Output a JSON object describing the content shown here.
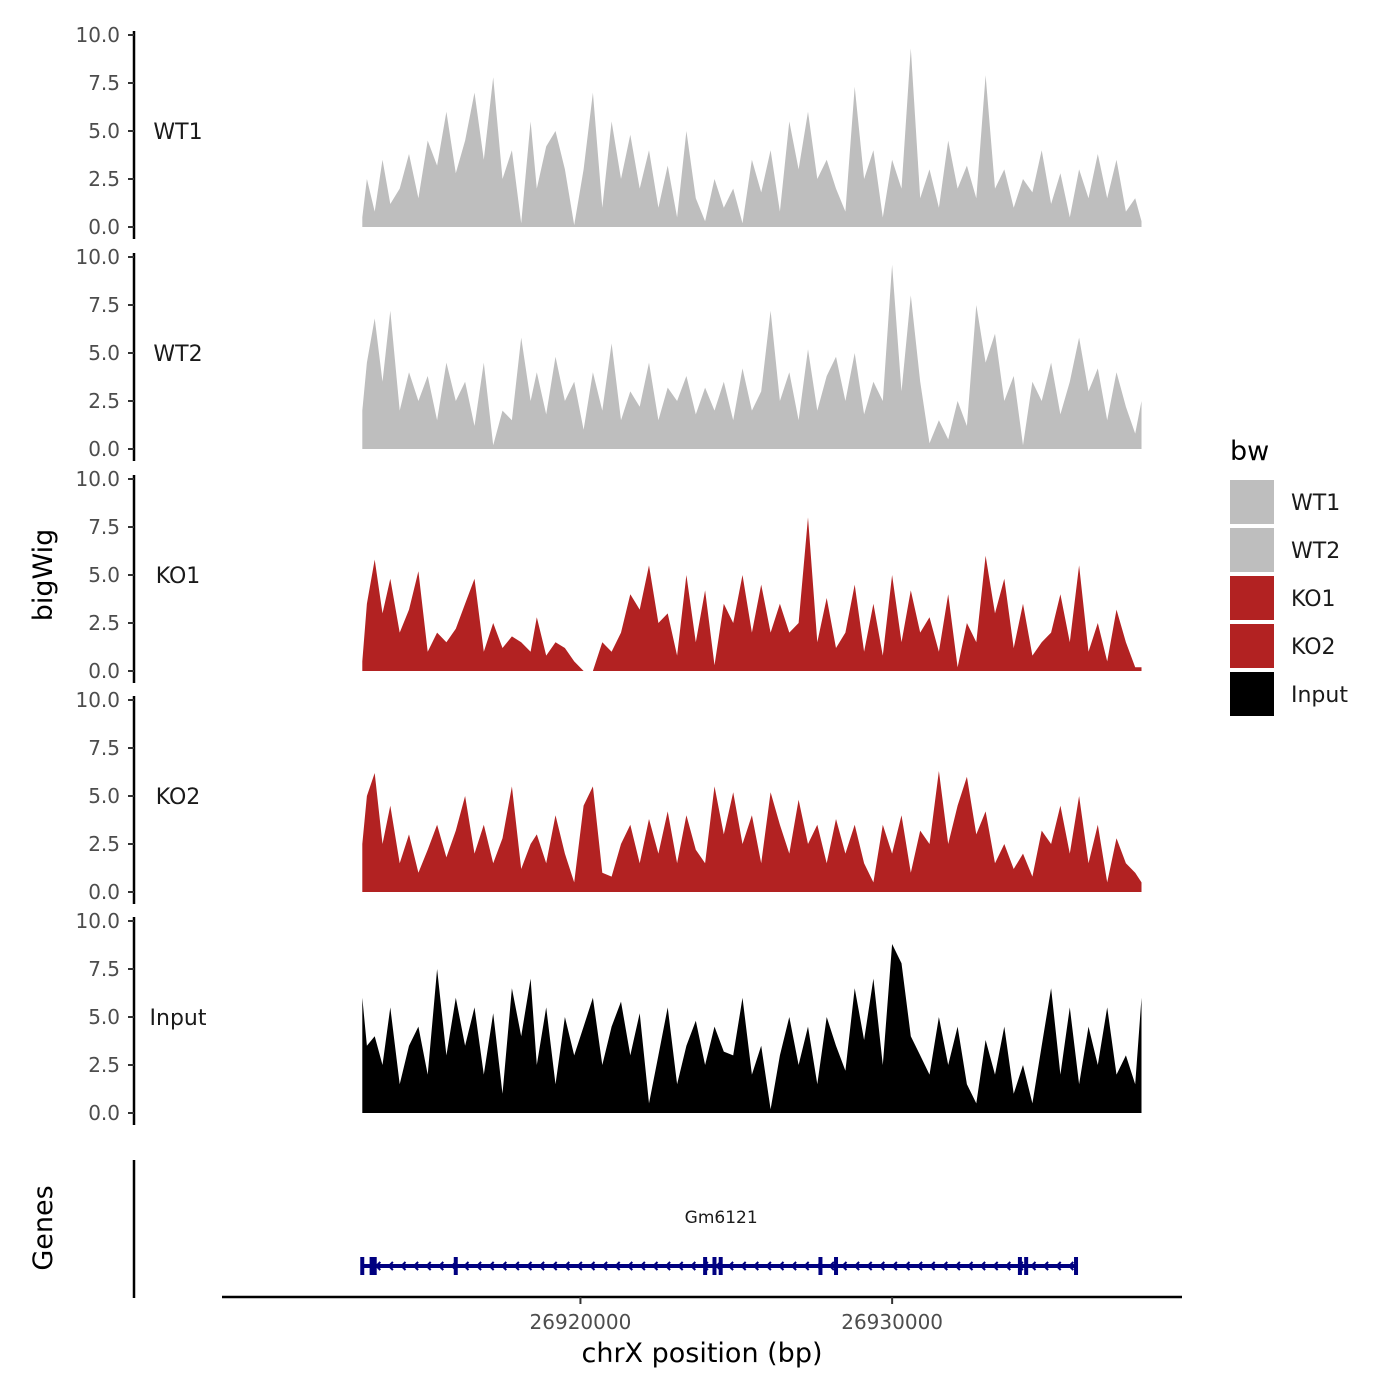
{
  "chart_data": {
    "type": "area",
    "title": "",
    "ylabel": "bigWig",
    "genes_label": "Genes",
    "xlabel": "chrX position (bp)",
    "xlim": [
      26913000,
      26938000
    ],
    "x_axis_range": [
      26908500,
      26939300
    ],
    "x_ticks": [
      26920000,
      26930000
    ],
    "x_tick_labels": [
      "26920000",
      "26930000"
    ],
    "ylim": [
      0,
      10
    ],
    "y_ticks": [
      0,
      2.5,
      5,
      7.5,
      10
    ],
    "y_tick_labels": [
      "0.0",
      "2.5",
      "5.0",
      "7.5",
      "10.0"
    ],
    "legend": {
      "title": "bw",
      "position": "right",
      "entries": [
        {
          "label": "WT1",
          "color": "#bebebe"
        },
        {
          "label": "WT2",
          "color": "#bebebe"
        },
        {
          "label": "KO1",
          "color": "#b22222"
        },
        {
          "label": "KO2",
          "color": "#b22222"
        },
        {
          "label": "Input",
          "color": "#000000"
        }
      ]
    },
    "series": [
      {
        "name": "WT1",
        "color": "#bebebe",
        "x": [
          26913000,
          26913150,
          26913400,
          26913650,
          26913900,
          26914200,
          26914500,
          26914800,
          26915100,
          26915400,
          26915700,
          26916000,
          26916300,
          26916600,
          26916900,
          26917200,
          26917500,
          26917800,
          26918100,
          26918400,
          26918600,
          26918900,
          26919200,
          26919500,
          26919800,
          26920100,
          26920400,
          26920700,
          26921000,
          26921300,
          26921600,
          26921900,
          26922200,
          26922500,
          26922800,
          26923100,
          26923400,
          26923700,
          26924000,
          26924300,
          26924600,
          26924900,
          26925200,
          26925500,
          26925800,
          26926100,
          26926400,
          26926700,
          26927000,
          26927300,
          26927600,
          26927900,
          26928200,
          26928500,
          26928800,
          26929100,
          26929400,
          26929700,
          26930000,
          26930300,
          26930600,
          26930900,
          26931200,
          26931500,
          26931800,
          26932100,
          26932400,
          26932700,
          26933000,
          26933300,
          26933600,
          26933900,
          26934200,
          26934500,
          26934800,
          26935100,
          26935400,
          26935700,
          26936000,
          26936300,
          26936600,
          26936900,
          26937200,
          26937500,
          26937800,
          26938000
        ],
        "y": [
          0.5,
          2.5,
          0.8,
          3.5,
          1.2,
          2.0,
          3.8,
          1.5,
          4.5,
          3.2,
          6.0,
          2.8,
          4.5,
          7.0,
          3.5,
          7.8,
          2.5,
          4.0,
          0.2,
          5.5,
          2.0,
          4.2,
          5.0,
          3.0,
          0.1,
          3.0,
          7.0,
          1.0,
          5.5,
          2.5,
          4.8,
          2.0,
          4.0,
          1.0,
          3.2,
          0.5,
          5.0,
          1.5,
          0.3,
          2.5,
          1.0,
          2.0,
          0.2,
          3.5,
          1.8,
          4.0,
          0.8,
          5.5,
          3.0,
          6.0,
          2.5,
          3.5,
          2.0,
          0.8,
          7.3,
          2.5,
          4.0,
          0.5,
          3.5,
          2.0,
          9.3,
          1.5,
          3.0,
          1.0,
          4.5,
          2.0,
          3.2,
          1.5,
          7.9,
          2.0,
          3.0,
          1.0,
          2.5,
          1.8,
          4.0,
          1.2,
          2.8,
          0.5,
          3.0,
          1.5,
          3.8,
          1.5,
          3.5,
          0.8,
          1.5,
          0.3
        ]
      },
      {
        "name": "WT2",
        "color": "#bebebe",
        "x": [
          26913000,
          26913150,
          26913400,
          26913650,
          26913900,
          26914200,
          26914500,
          26914800,
          26915100,
          26915400,
          26915700,
          26916000,
          26916300,
          26916600,
          26916900,
          26917200,
          26917500,
          26917800,
          26918100,
          26918400,
          26918600,
          26918900,
          26919200,
          26919500,
          26919800,
          26920100,
          26920400,
          26920700,
          26921000,
          26921300,
          26921600,
          26921900,
          26922200,
          26922500,
          26922800,
          26923100,
          26923400,
          26923700,
          26924000,
          26924300,
          26924600,
          26924900,
          26925200,
          26925500,
          26925800,
          26926100,
          26926400,
          26926700,
          26927000,
          26927300,
          26927600,
          26927900,
          26928200,
          26928500,
          26928800,
          26929100,
          26929400,
          26929700,
          26930000,
          26930300,
          26930600,
          26930900,
          26931200,
          26931500,
          26931800,
          26932100,
          26932400,
          26932700,
          26933000,
          26933300,
          26933600,
          26933900,
          26934200,
          26934500,
          26934800,
          26935100,
          26935400,
          26935700,
          26936000,
          26936300,
          26936600,
          26936900,
          26937200,
          26937500,
          26937800,
          26938000
        ],
        "y": [
          2.0,
          4.5,
          6.8,
          3.5,
          7.2,
          2.0,
          4.0,
          2.5,
          3.8,
          1.5,
          4.5,
          2.5,
          3.5,
          1.2,
          4.5,
          0.2,
          2.0,
          1.5,
          5.8,
          2.5,
          4.0,
          1.8,
          4.8,
          2.5,
          3.5,
          1.0,
          4.0,
          2.0,
          5.5,
          1.5,
          3.0,
          2.2,
          4.5,
          1.5,
          3.2,
          2.5,
          3.8,
          1.8,
          3.2,
          2.0,
          3.5,
          1.5,
          4.2,
          2.0,
          3.0,
          7.2,
          2.5,
          4.0,
          1.5,
          5.2,
          2.0,
          3.8,
          4.8,
          2.5,
          5.0,
          1.8,
          3.5,
          2.5,
          9.6,
          3.0,
          8.0,
          3.5,
          0.3,
          1.5,
          0.5,
          2.5,
          1.2,
          7.5,
          4.5,
          6.0,
          2.5,
          3.8,
          0.2,
          3.5,
          2.5,
          4.5,
          1.8,
          3.5,
          5.8,
          3.0,
          4.2,
          1.5,
          4.0,
          2.2,
          0.8,
          2.5
        ]
      },
      {
        "name": "KO1",
        "color": "#b22222",
        "x": [
          26913000,
          26913150,
          26913400,
          26913650,
          26913900,
          26914200,
          26914500,
          26914800,
          26915100,
          26915400,
          26915700,
          26916000,
          26916300,
          26916600,
          26916900,
          26917200,
          26917500,
          26917800,
          26918100,
          26918400,
          26918600,
          26918900,
          26919200,
          26919500,
          26919800,
          26920100,
          26920400,
          26920700,
          26921000,
          26921300,
          26921600,
          26921900,
          26922200,
          26922500,
          26922800,
          26923100,
          26923400,
          26923700,
          26924000,
          26924300,
          26924600,
          26924900,
          26925200,
          26925500,
          26925800,
          26926100,
          26926400,
          26926700,
          26927000,
          26927300,
          26927600,
          26927900,
          26928200,
          26928500,
          26928800,
          26929100,
          26929400,
          26929700,
          26930000,
          26930300,
          26930600,
          26930900,
          26931200,
          26931500,
          26931800,
          26932100,
          26932400,
          26932700,
          26933000,
          26933300,
          26933600,
          26933900,
          26934200,
          26934500,
          26934800,
          26935100,
          26935400,
          26935700,
          26936000,
          26936300,
          26936600,
          26936900,
          26937200,
          26937500,
          26937800,
          26938000
        ],
        "y": [
          0.5,
          3.5,
          5.8,
          3.0,
          4.8,
          2.0,
          3.2,
          5.2,
          1.0,
          2.0,
          1.5,
          2.2,
          3.5,
          4.8,
          1.0,
          2.5,
          1.2,
          1.8,
          1.5,
          1.0,
          2.8,
          0.8,
          1.5,
          1.2,
          0.5,
          0.0,
          0.0,
          1.5,
          1.0,
          2.0,
          4.0,
          3.2,
          5.5,
          2.5,
          3.0,
          0.8,
          5.0,
          1.5,
          4.2,
          0.3,
          3.5,
          2.5,
          5.0,
          2.0,
          4.5,
          2.0,
          3.5,
          2.0,
          2.5,
          8.0,
          1.5,
          3.8,
          1.2,
          2.0,
          4.5,
          1.0,
          3.5,
          0.8,
          5.0,
          1.5,
          4.2,
          2.0,
          2.8,
          1.0,
          4.0,
          0.2,
          2.5,
          1.5,
          6.0,
          3.0,
          4.8,
          1.2,
          3.5,
          0.8,
          1.5,
          2.0,
          4.0,
          1.5,
          5.5,
          1.0,
          2.5,
          0.5,
          3.2,
          1.5,
          0.2,
          0.2
        ]
      },
      {
        "name": "KO2",
        "color": "#b22222",
        "x": [
          26913000,
          26913150,
          26913400,
          26913650,
          26913900,
          26914200,
          26914500,
          26914800,
          26915100,
          26915400,
          26915700,
          26916000,
          26916300,
          26916600,
          26916900,
          26917200,
          26917500,
          26917800,
          26918100,
          26918400,
          26918600,
          26918900,
          26919200,
          26919500,
          26919800,
          26920100,
          26920400,
          26920700,
          26921000,
          26921300,
          26921600,
          26921900,
          26922200,
          26922500,
          26922800,
          26923100,
          26923400,
          26923700,
          26924000,
          26924300,
          26924600,
          26924900,
          26925200,
          26925500,
          26925800,
          26926100,
          26926400,
          26926700,
          26927000,
          26927300,
          26927600,
          26927900,
          26928200,
          26928500,
          26928800,
          26929100,
          26929400,
          26929700,
          26930000,
          26930300,
          26930600,
          26930900,
          26931200,
          26931500,
          26931800,
          26932100,
          26932400,
          26932700,
          26933000,
          26933300,
          26933600,
          26933900,
          26934200,
          26934500,
          26934800,
          26935100,
          26935400,
          26935700,
          26936000,
          26936300,
          26936600,
          26936900,
          26937200,
          26937500,
          26937800,
          26938000
        ],
        "y": [
          2.5,
          5.0,
          6.2,
          2.5,
          4.5,
          1.5,
          3.0,
          1.0,
          2.2,
          3.5,
          1.8,
          3.2,
          5.0,
          2.0,
          3.5,
          1.5,
          2.8,
          5.5,
          1.2,
          2.5,
          3.0,
          1.5,
          4.0,
          2.0,
          0.5,
          4.5,
          5.5,
          1.0,
          0.8,
          2.5,
          3.5,
          1.5,
          3.8,
          2.0,
          4.2,
          1.5,
          4.0,
          2.2,
          1.5,
          5.5,
          3.0,
          5.2,
          2.5,
          4.0,
          1.5,
          5.2,
          3.5,
          2.0,
          4.8,
          2.5,
          3.5,
          1.5,
          3.8,
          2.0,
          3.5,
          1.5,
          0.5,
          3.5,
          2.0,
          4.0,
          1.0,
          3.2,
          2.5,
          6.3,
          2.5,
          4.5,
          6.0,
          3.0,
          4.2,
          1.5,
          2.5,
          1.2,
          2.0,
          0.8,
          3.2,
          2.5,
          4.5,
          2.0,
          5.0,
          1.5,
          3.5,
          0.5,
          2.8,
          1.5,
          1.0,
          0.5
        ]
      },
      {
        "name": "Input",
        "color": "#000000",
        "x": [
          26913000,
          26913150,
          26913400,
          26913650,
          26913900,
          26914200,
          26914500,
          26914800,
          26915100,
          26915400,
          26915700,
          26916000,
          26916300,
          26916600,
          26916900,
          26917200,
          26917500,
          26917800,
          26918100,
          26918400,
          26918600,
          26918900,
          26919200,
          26919500,
          26919800,
          26920100,
          26920400,
          26920700,
          26921000,
          26921300,
          26921600,
          26921900,
          26922200,
          26922500,
          26922800,
          26923100,
          26923400,
          26923700,
          26924000,
          26924300,
          26924600,
          26924900,
          26925200,
          26925500,
          26925800,
          26926100,
          26926400,
          26926700,
          26927000,
          26927300,
          26927600,
          26927900,
          26928200,
          26928500,
          26928800,
          26929100,
          26929400,
          26929700,
          26930000,
          26930300,
          26930600,
          26930900,
          26931200,
          26931500,
          26931800,
          26932100,
          26932400,
          26932700,
          26933000,
          26933300,
          26933600,
          26933900,
          26934200,
          26934500,
          26934800,
          26935100,
          26935400,
          26935700,
          26936000,
          26936300,
          26936600,
          26936900,
          26937200,
          26937500,
          26937800,
          26938000
        ],
        "y": [
          6.0,
          3.5,
          4.0,
          2.5,
          5.5,
          1.5,
          3.5,
          4.5,
          2.0,
          7.5,
          3.0,
          6.0,
          3.5,
          5.5,
          2.0,
          5.2,
          1.0,
          6.5,
          4.0,
          7.0,
          2.5,
          5.5,
          1.5,
          5.0,
          3.0,
          4.5,
          6.0,
          2.5,
          4.5,
          5.8,
          3.0,
          5.2,
          0.5,
          3.0,
          5.5,
          1.5,
          3.5,
          4.8,
          2.5,
          4.5,
          3.2,
          3.0,
          6.0,
          2.0,
          3.5,
          0.2,
          3.0,
          5.0,
          2.5,
          4.5,
          1.5,
          5.0,
          3.5,
          2.2,
          6.5,
          3.8,
          7.0,
          2.5,
          8.8,
          7.8,
          4.0,
          3.0,
          2.0,
          5.0,
          2.5,
          4.5,
          1.5,
          0.5,
          3.8,
          2.0,
          4.5,
          1.0,
          2.5,
          0.5,
          3.5,
          6.5,
          2.0,
          5.5,
          1.5,
          4.5,
          2.5,
          5.5,
          2.0,
          3.0,
          1.5,
          6.0
        ]
      }
    ],
    "gene": {
      "name": "Gm6121",
      "start": 26913000,
      "end": 26935900,
      "strand": "-",
      "color": "#000080",
      "exons": [
        26913000,
        26913300,
        26913400,
        26916000,
        26924000,
        26924300,
        26924500,
        26927700,
        26928200,
        26934100,
        26934300,
        26935900
      ]
    }
  }
}
